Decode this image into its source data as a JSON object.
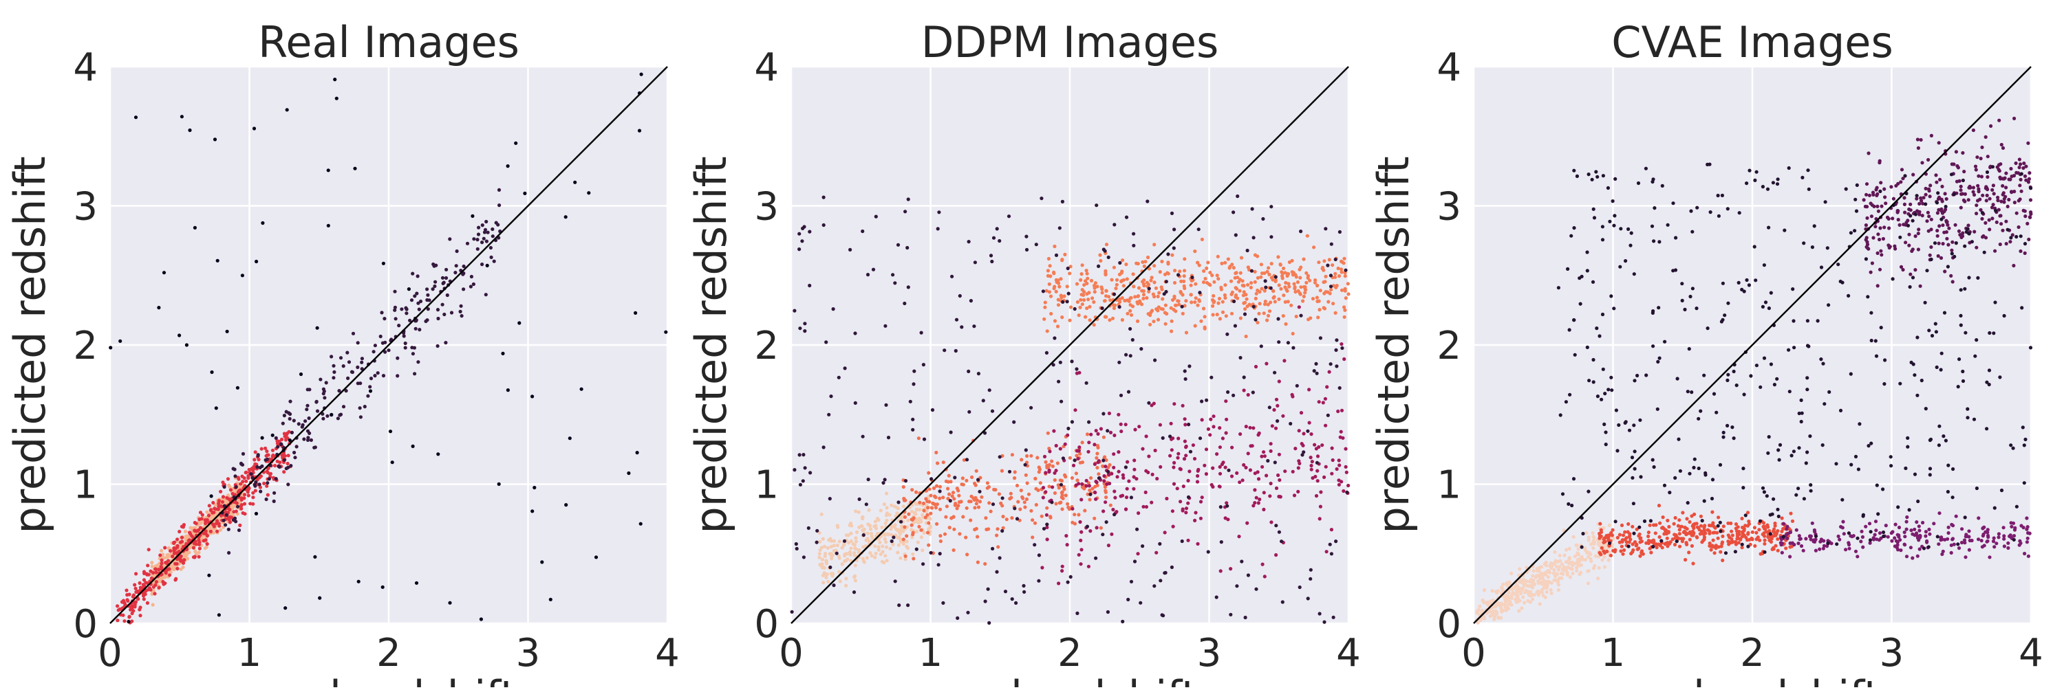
{
  "figure": {
    "panels": [
      "Real Images",
      "DDPM Images",
      "CVAE Images"
    ]
  },
  "style": {
    "plot_background": "#eaeaf2",
    "grid_color": "#ffffff",
    "text_color": "#262626",
    "identity_line_color": "#000000",
    "colormap": "rocket (density: dark purple = low, pale peach = high)"
  },
  "chart_data": [
    {
      "type": "scatter",
      "title": "Real Images",
      "xlabel": "real redshift",
      "ylabel": "predicted redshift",
      "xlim": [
        0,
        4
      ],
      "ylim": [
        0,
        4
      ],
      "xticks": [
        "0",
        "1",
        "2",
        "3",
        "4"
      ],
      "yticks": [
        "0",
        "1",
        "2",
        "3",
        "4"
      ],
      "grid": true,
      "reference_line": "y = x",
      "point_color_encoding": "local point density",
      "clusters": [
        {
          "description": "dense core along y=x",
          "x_range": [
            0.3,
            0.95
          ],
          "y_offset_sd": 0.05,
          "count": 700,
          "color": "#f6b48f"
        },
        {
          "description": "band along y=x",
          "x_range": [
            0.05,
            1.3
          ],
          "y_offset_sd": 0.08,
          "count": 450,
          "color": "#e13342"
        },
        {
          "description": "spread along y=x",
          "x_range": [
            0.8,
            2.8
          ],
          "y_offset_sd": 0.15,
          "count": 260,
          "color": "#35193e"
        },
        {
          "description": "outliers",
          "x_range": [
            0,
            4
          ],
          "y_range": [
            0,
            4
          ],
          "count": 70,
          "color": "#03051a"
        }
      ],
      "notable_points": [
        {
          "x": 1.27,
          "y": 3.69
        },
        {
          "x": 3.8,
          "y": 3.54
        },
        {
          "x": 3.8,
          "y": 3.81
        },
        {
          "x": 3.27,
          "y": 2.92
        },
        {
          "x": 3.03,
          "y": 1.63
        },
        {
          "x": 3.1,
          "y": 0.44
        },
        {
          "x": 3.3,
          "y": 1.33
        },
        {
          "x": 2.2,
          "y": 0.29
        },
        {
          "x": 1.05,
          "y": 2.6
        },
        {
          "x": 0.95,
          "y": 2.5
        },
        {
          "x": 0.55,
          "y": 2.0
        }
      ]
    },
    {
      "type": "scatter",
      "title": "DDPM Images",
      "xlabel": "real redshift",
      "ylabel": "predicted redshift",
      "xlim": [
        0,
        4
      ],
      "ylim": [
        0,
        4
      ],
      "xticks": [
        "0",
        "1",
        "2",
        "3",
        "4"
      ],
      "yticks": [
        "0",
        "1",
        "2",
        "3",
        "4"
      ],
      "grid": true,
      "reference_line": "y = x",
      "point_color_encoding": "local point density",
      "clusters": [
        {
          "description": "low-z core",
          "x_range": [
            0.2,
            1.0
          ],
          "y_center": [
            0.45,
            0.8
          ],
          "y_sd": 0.1,
          "count": 320,
          "color": "#f4ccb2"
        },
        {
          "description": "rising band",
          "x_range": [
            0.8,
            2.3
          ],
          "y_center": [
            0.8,
            1.05
          ],
          "y_sd": 0.15,
          "count": 300,
          "color": "#f17050"
        },
        {
          "description": "upper plateau",
          "x_range": [
            1.8,
            4.0
          ],
          "y_center": [
            2.38,
            2.42
          ],
          "y_sd": 0.13,
          "count": 520,
          "color": "#f57d55"
        },
        {
          "description": "lower plateau",
          "x_range": [
            1.8,
            4.0
          ],
          "y_center": [
            0.95,
            1.25
          ],
          "y_sd": 0.28,
          "count": 350,
          "color": "#a11a5b"
        },
        {
          "description": "scatter",
          "x_range": [
            0,
            4
          ],
          "y_range": [
            0,
            3.1
          ],
          "count": 350,
          "color": "#2f1739"
        }
      ]
    },
    {
      "type": "scatter",
      "title": "CVAE Images",
      "xlabel": "real redshift",
      "ylabel": "predicted redshift",
      "xlim": [
        0,
        4
      ],
      "ylim": [
        0,
        4
      ],
      "xticks": [
        "0",
        "1",
        "2",
        "3",
        "4"
      ],
      "yticks": [
        "0",
        "1",
        "2",
        "3",
        "4"
      ],
      "grid": true,
      "reference_line": "y = x",
      "point_color_encoding": "local point density",
      "clusters": [
        {
          "description": "low-z core",
          "x_range": [
            0.02,
            1.0
          ],
          "y_center": [
            0.05,
            0.6
          ],
          "y_sd": 0.07,
          "count": 450,
          "color": "#f6d2bf"
        },
        {
          "description": "flat band",
          "x_range": [
            0.9,
            2.3
          ],
          "y_center": [
            0.6,
            0.65
          ],
          "y_sd": 0.07,
          "count": 380,
          "color": "#ea4e3c"
        },
        {
          "description": "flat band tail",
          "x_range": [
            2.2,
            4.0
          ],
          "y_center": [
            0.6,
            0.62
          ],
          "y_sd": 0.06,
          "count": 230,
          "color": "#7c1d6f"
        },
        {
          "description": "upper cluster",
          "x_range": [
            2.8,
            4.0
          ],
          "y_center": [
            2.9,
            3.1
          ],
          "y_sd": 0.2,
          "count": 360,
          "color": "#601755"
        },
        {
          "description": "scatter",
          "x_range": [
            0.6,
            4.0
          ],
          "y_range": [
            0.5,
            3.3
          ],
          "count": 450,
          "color": "#221330"
        }
      ]
    }
  ]
}
